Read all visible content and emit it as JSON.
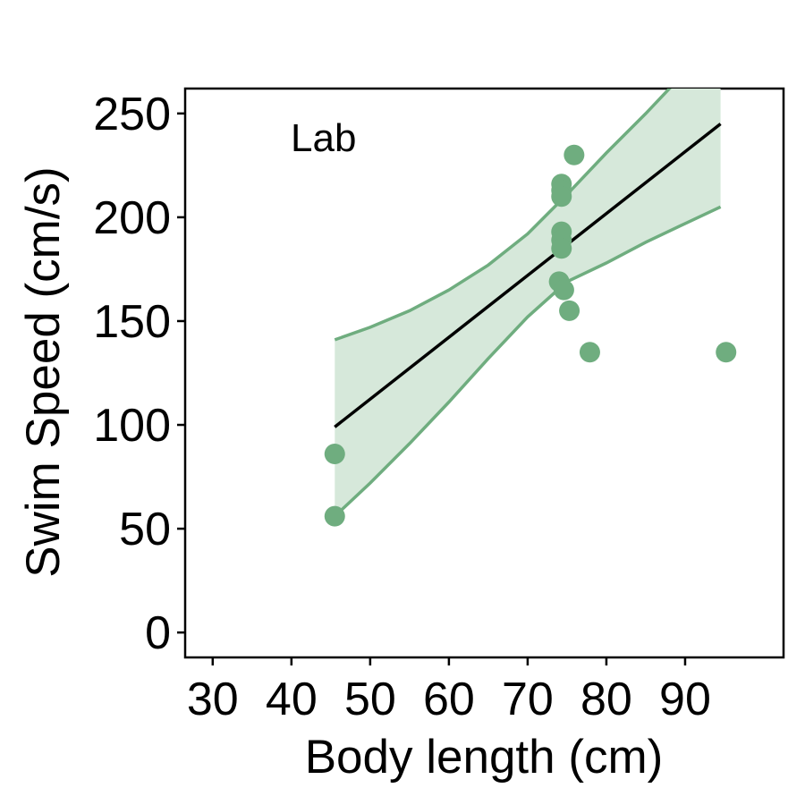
{
  "chart_data": {
    "type": "scatter",
    "annotation": "Lab",
    "xlabel": "Body length (cm)",
    "ylabel": "Swim Speed (cm/s)",
    "xlim": [
      26.5,
      102.5
    ],
    "ylim": [
      -12,
      262
    ],
    "x_ticks": [
      30,
      40,
      50,
      60,
      70,
      80,
      90
    ],
    "y_ticks": [
      0,
      50,
      100,
      150,
      200,
      250
    ],
    "grid": false,
    "legend": "none",
    "colors": {
      "points": "#6FAD7F",
      "band_fill": "#D6E8DA",
      "band_line": "#6FAD7F",
      "fit_line": "#000000"
    },
    "points": [
      {
        "x": 45.5,
        "y": 86
      },
      {
        "x": 45.5,
        "y": 56
      },
      {
        "x": 74.3,
        "y": 216
      },
      {
        "x": 74.3,
        "y": 213
      },
      {
        "x": 74.3,
        "y": 210
      },
      {
        "x": 74.3,
        "y": 193
      },
      {
        "x": 74.3,
        "y": 189
      },
      {
        "x": 74.3,
        "y": 185
      },
      {
        "x": 74.0,
        "y": 169
      },
      {
        "x": 74.6,
        "y": 165
      },
      {
        "x": 75.3,
        "y": 155
      },
      {
        "x": 75.9,
        "y": 230
      },
      {
        "x": 77.9,
        "y": 135
      },
      {
        "x": 95.2,
        "y": 135
      }
    ],
    "fit_line": {
      "x": [
        45.5,
        94.5
      ],
      "y": [
        99,
        245
      ]
    },
    "confidence_band": {
      "x": [
        45.5,
        50,
        55,
        60,
        65,
        70,
        75,
        80,
        85,
        90,
        94.5
      ],
      "upper": [
        141,
        147,
        155,
        165,
        177,
        192,
        211,
        231,
        250,
        270,
        290
      ],
      "lower": [
        56,
        72,
        91,
        111,
        132,
        152,
        169,
        178,
        188,
        197,
        205
      ]
    }
  }
}
